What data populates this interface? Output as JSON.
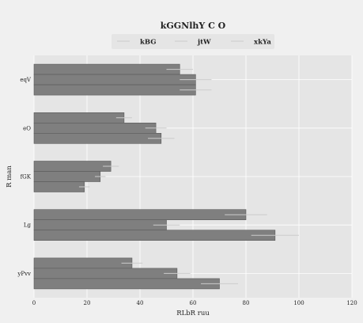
{
  "chart_data": {
    "type": "bar",
    "orientation": "horizontal",
    "title": "kGGNlhY C O",
    "xlabel": "RLbR ruu",
    "ylabel": "R man",
    "xlim": [
      0,
      120
    ],
    "xticks": [
      0,
      20,
      40,
      60,
      80,
      100,
      120
    ],
    "categories": [
      "eqV",
      "eO",
      "fGK",
      "Lg",
      "yPvv"
    ],
    "series": [
      {
        "name": "kBG",
        "values": [
          55,
          34,
          29,
          80,
          37
        ],
        "errors": [
          5,
          3,
          3,
          8,
          4
        ]
      },
      {
        "name": "jtW",
        "values": [
          61,
          46,
          25,
          50,
          54
        ],
        "errors": [
          6,
          4,
          2,
          5,
          5
        ]
      },
      {
        "name": "xkYa",
        "values": [
          61,
          48,
          19,
          91,
          70
        ],
        "errors": [
          6,
          5,
          2,
          9,
          7
        ]
      }
    ],
    "grid": true,
    "legend": "top-center",
    "colors": {
      "bar_fill": "#7f7f7f",
      "bar_stroke": "#5a5a5a",
      "error_bar": "#cccccc",
      "plot_bg": "#e5e5e5",
      "page_bg": "#f0f0f0",
      "grid": "#ffffff"
    }
  }
}
